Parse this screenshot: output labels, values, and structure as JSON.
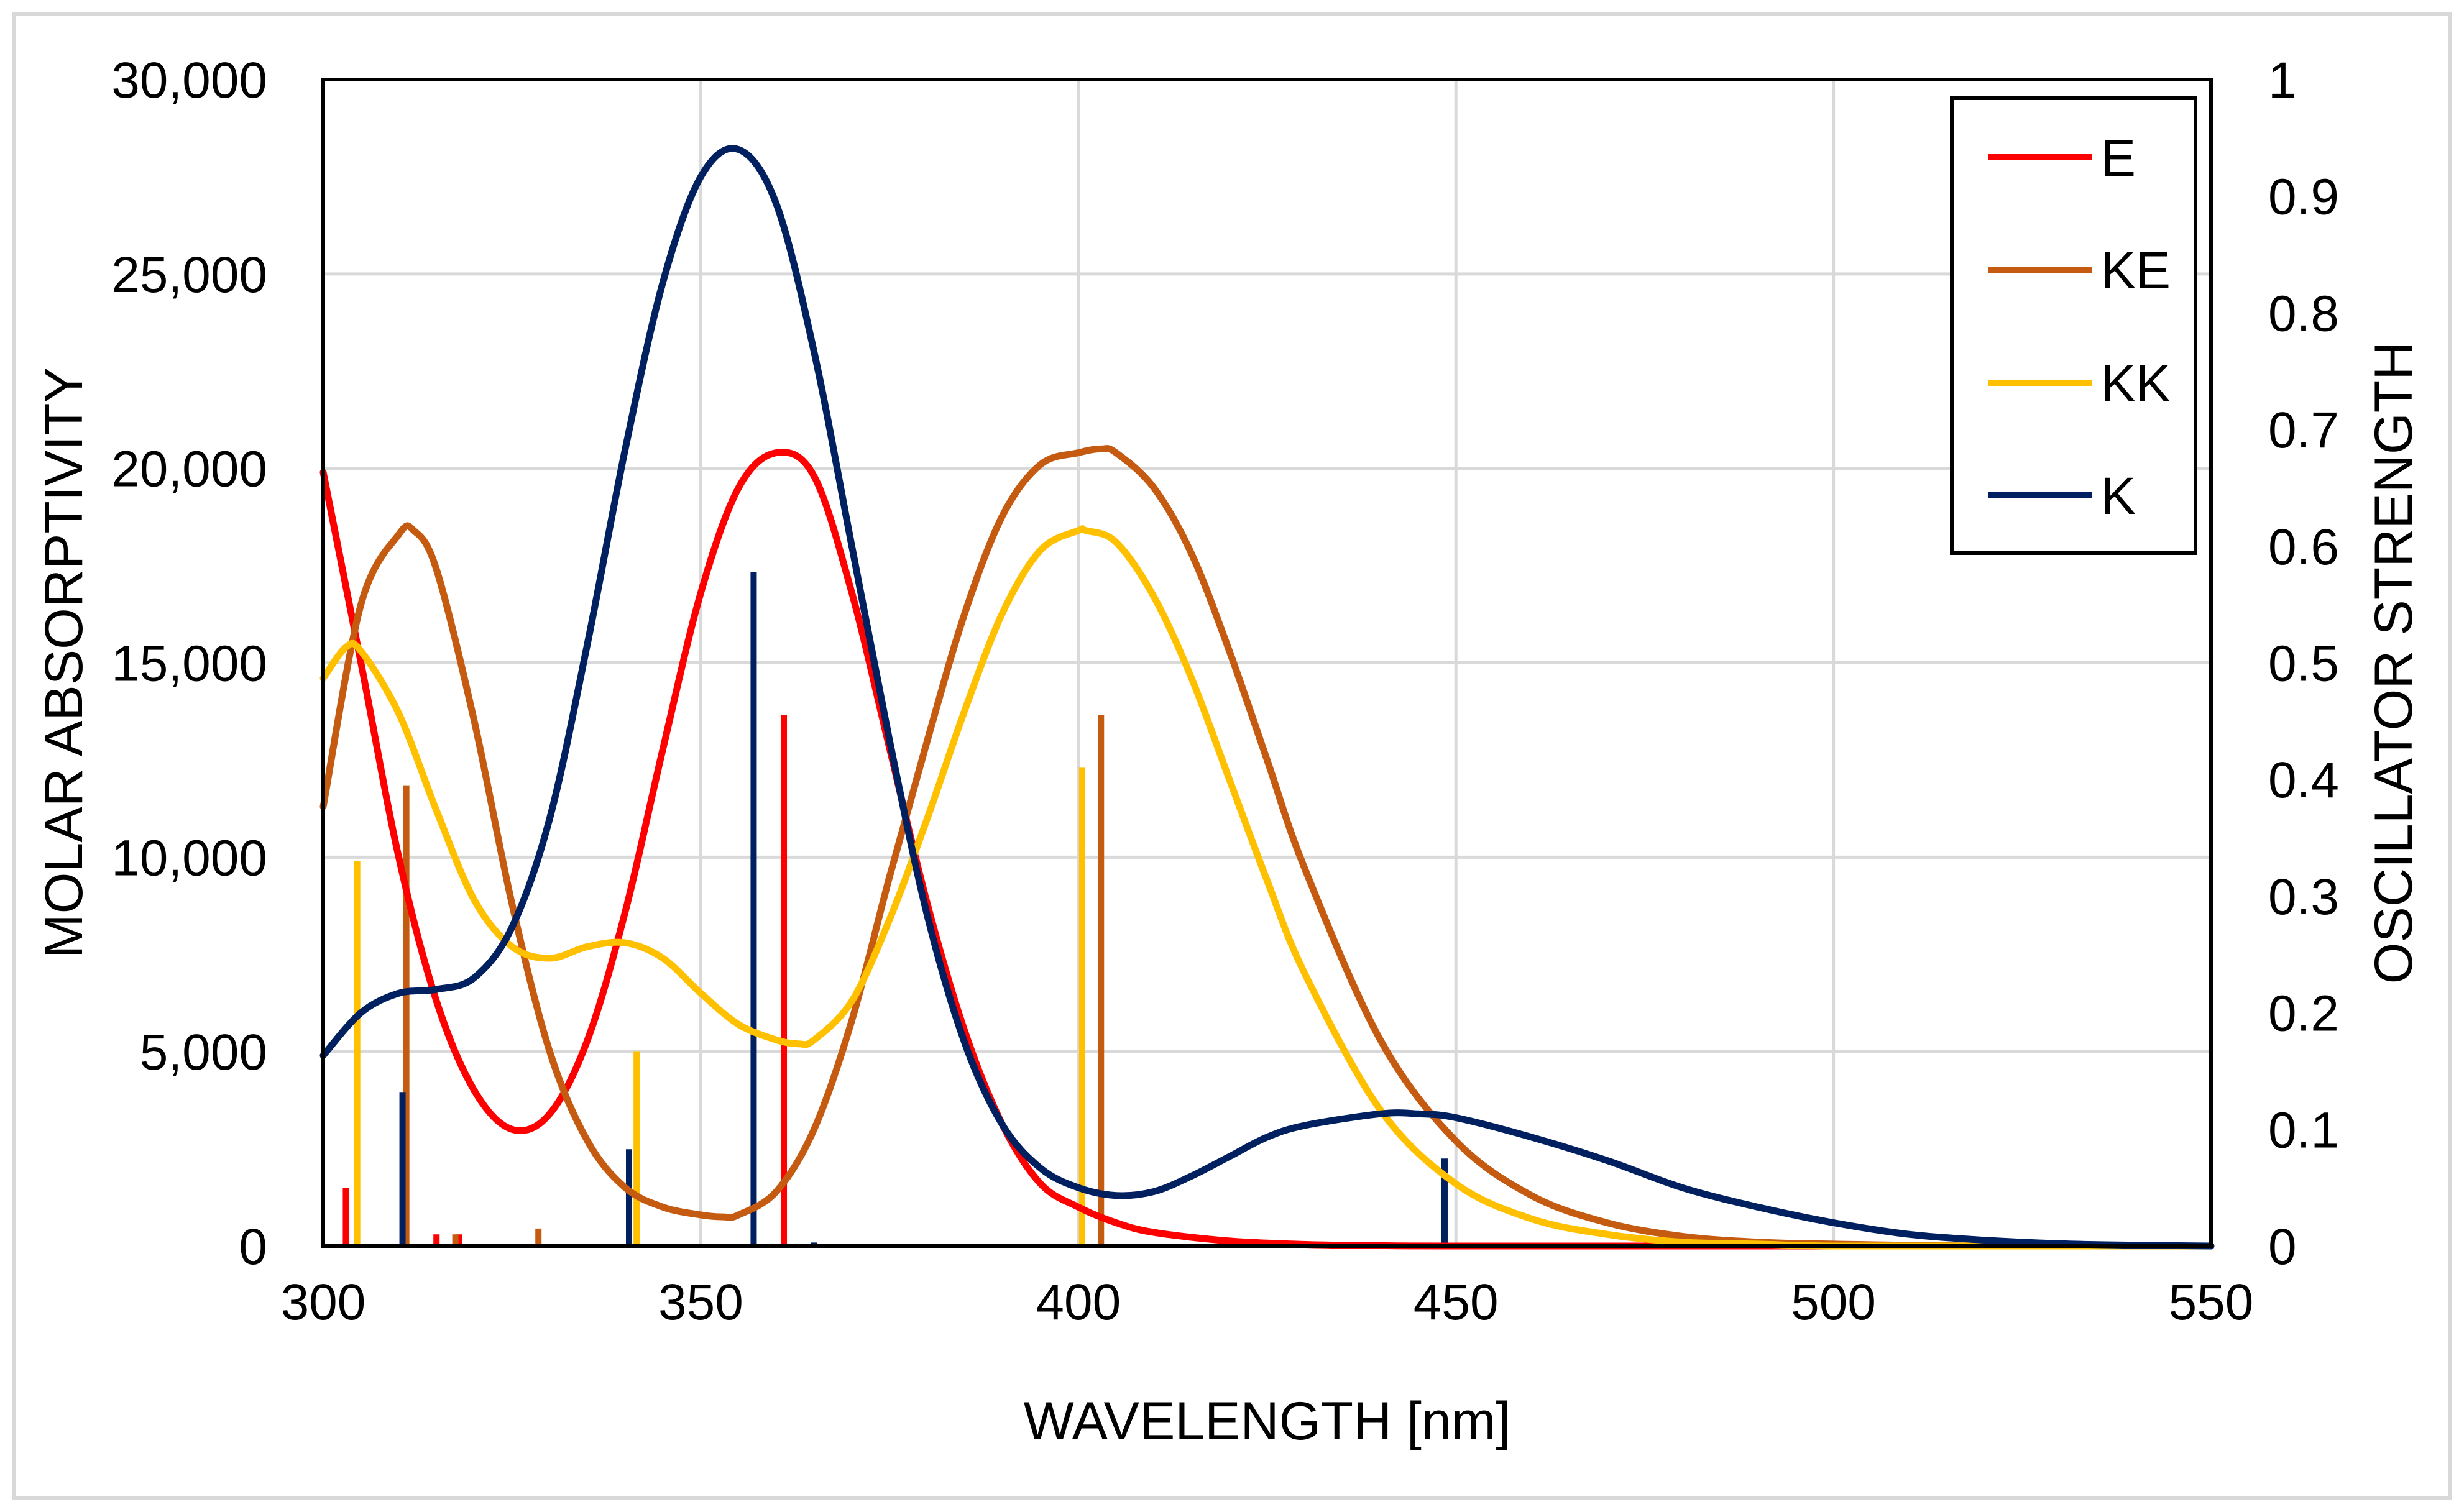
{
  "chart_data": {
    "type": "line",
    "title": "",
    "xlabel": "WAVELENGTH [nm]",
    "ylabel": "MOLAR ABSORPTIVITY",
    "y2label": "OSCILLATOR STRENGTH",
    "xlim": [
      300,
      550
    ],
    "ylim": [
      0,
      30000
    ],
    "y2lim": [
      0,
      1
    ],
    "grid": true,
    "legend_position": "top-right",
    "x_ticks": [
      "300",
      "350",
      "400",
      "450",
      "500",
      "550"
    ],
    "y_ticks": [
      "0",
      "5,000",
      "10,000",
      "15,000",
      "20,000",
      "25,000",
      "30,000"
    ],
    "y2_ticks": [
      "0",
      "0.1",
      "0.2",
      "0.3",
      "0.4",
      "0.5",
      "0.6",
      "0.7",
      "0.8",
      "0.9",
      "1"
    ],
    "series": [
      {
        "name": "E",
        "color": "#ff0000",
        "x": [
          300,
          305,
          310,
          315,
          320,
          325,
          330,
          335,
          340,
          345,
          350,
          355,
          360,
          365,
          370,
          375,
          380,
          385,
          390,
          395,
          400,
          405,
          410,
          420,
          430,
          440,
          450,
          500,
          550
        ],
        "values": [
          19900,
          15000,
          10000,
          6300,
          4000,
          3000,
          3400,
          5300,
          8600,
          12800,
          16800,
          19500,
          20400,
          19800,
          16800,
          12800,
          8800,
          5500,
          3100,
          1600,
          1000,
          600,
          350,
          130,
          40,
          10,
          0,
          0,
          0
        ],
        "sticks": [
          {
            "x": 303,
            "f": 0.05
          },
          {
            "x": 315,
            "f": 0.01
          },
          {
            "x": 318,
            "f": 0.01
          },
          {
            "x": 361,
            "f": 0.455
          }
        ]
      },
      {
        "name": "KE",
        "color": "#c55a11",
        "x": [
          300,
          305,
          310,
          312,
          315,
          320,
          325,
          330,
          335,
          340,
          345,
          350,
          353,
          355,
          360,
          365,
          370,
          375,
          380,
          385,
          390,
          395,
          400,
          403,
          405,
          410,
          415,
          420,
          425,
          430,
          440,
          450,
          460,
          470,
          480,
          490,
          500,
          520,
          550
        ],
        "values": [
          11300,
          16500,
          18300,
          18400,
          17400,
          13500,
          8800,
          5000,
          2700,
          1500,
          1000,
          800,
          750,
          800,
          1400,
          3000,
          5800,
          9500,
          13000,
          16300,
          18800,
          20100,
          20400,
          20500,
          20400,
          19500,
          17800,
          15300,
          12500,
          9700,
          5300,
          2700,
          1300,
          600,
          250,
          100,
          50,
          0,
          0
        ],
        "sticks": [
          {
            "x": 311,
            "f": 0.395
          },
          {
            "x": 317.5,
            "f": 0.01
          },
          {
            "x": 328.5,
            "f": 0.015
          },
          {
            "x": 403,
            "f": 0.455
          }
        ]
      },
      {
        "name": "KK",
        "color": "#ffc000",
        "x": [
          300,
          303,
          305,
          310,
          315,
          320,
          325,
          330,
          335,
          340,
          345,
          350,
          355,
          360,
          363,
          365,
          370,
          375,
          380,
          385,
          390,
          395,
          400,
          401,
          405,
          410,
          415,
          420,
          425,
          430,
          440,
          450,
          460,
          470,
          480,
          490,
          500,
          520,
          550
        ],
        "values": [
          14600,
          15400,
          15300,
          13700,
          11200,
          8900,
          7700,
          7400,
          7700,
          7800,
          7400,
          6500,
          5700,
          5300,
          5200,
          5300,
          6300,
          8400,
          11000,
          13800,
          16300,
          17900,
          18400,
          18400,
          18100,
          16700,
          14600,
          12000,
          9400,
          7000,
          3500,
          1600,
          700,
          300,
          100,
          50,
          0,
          0,
          0
        ],
        "sticks": [
          {
            "x": 304.5,
            "f": 0.33
          },
          {
            "x": 341.5,
            "f": 0.167
          },
          {
            "x": 400.5,
            "f": 0.41
          }
        ]
      },
      {
        "name": "K",
        "color": "#002060",
        "x": [
          300,
          305,
          310,
          315,
          320,
          325,
          330,
          335,
          340,
          345,
          350,
          355,
          360,
          365,
          370,
          375,
          380,
          385,
          390,
          395,
          400,
          405,
          410,
          415,
          420,
          425,
          430,
          440,
          445,
          450,
          460,
          470,
          480,
          490,
          500,
          510,
          520,
          530,
          540,
          550
        ],
        "values": [
          4900,
          6000,
          6500,
          6600,
          6900,
          8200,
          11000,
          15500,
          20500,
          24800,
          27500,
          28200,
          26800,
          23000,
          18000,
          13000,
          8500,
          5200,
          3100,
          2000,
          1500,
          1300,
          1400,
          1800,
          2300,
          2800,
          3100,
          3400,
          3400,
          3300,
          2800,
          2200,
          1500,
          1000,
          600,
          300,
          150,
          60,
          20,
          0
        ],
        "sticks": [
          {
            "x": 310.5,
            "f": 0.132
          },
          {
            "x": 340.5,
            "f": 0.083
          },
          {
            "x": 357,
            "f": 0.578
          },
          {
            "x": 365,
            "f": 0.003
          },
          {
            "x": 448.5,
            "f": 0.075
          }
        ]
      }
    ]
  }
}
